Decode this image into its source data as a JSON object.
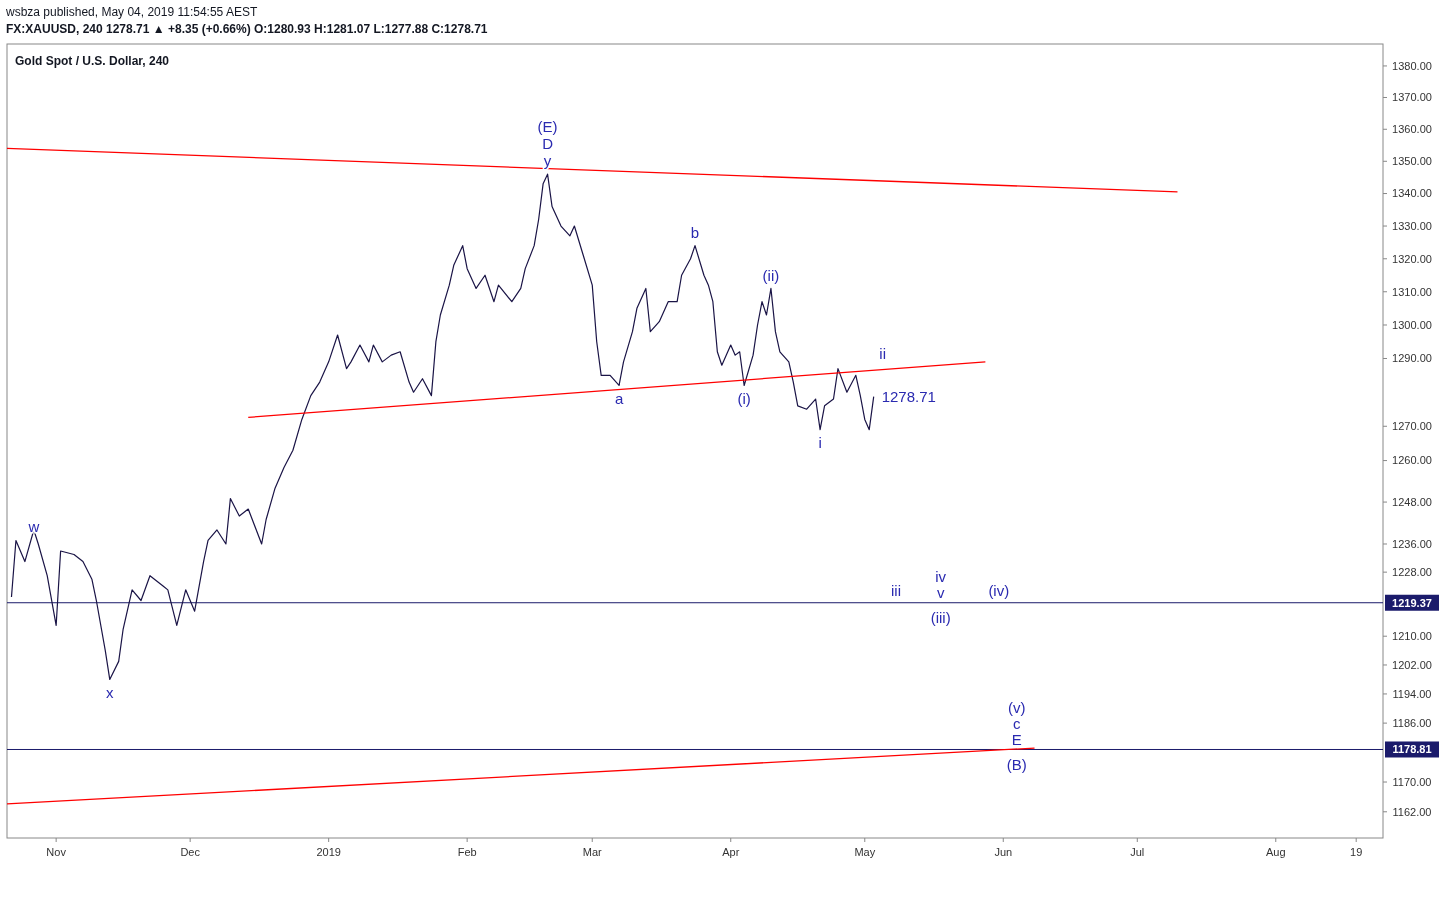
{
  "chart_data": {
    "type": "line",
    "title": "Gold Spot / U.S. Dollar, 240",
    "subtitle": "FX:XAUUSD, 240  1278.71 ▲ +8.35 (+0.66%)  O:1280.93  H:1281.07  L:1277.88  C:1278.71",
    "annotations": [
      "wsbza published, May 04, 2019 11:54:55 AEST",
      {
        "text": "y",
        "x": "2019-02-19",
        "y": 1346
      },
      {
        "text": "D",
        "x": "2019-02-19",
        "y": 1346
      },
      {
        "text": "(E)",
        "x": "2019-02-19",
        "y": 1346
      },
      {
        "text": "b",
        "x": "2019-03-24",
        "y": 1324
      },
      {
        "text": "(ii)",
        "x": "2019-04-10",
        "y": 1311
      },
      {
        "text": "ii",
        "x": "2019-05-05",
        "y": 1286.7
      },
      {
        "text": "a",
        "x": "2019-03-07",
        "y": 1282
      },
      {
        "text": "(i)",
        "x": "2019-04-04",
        "y": 1282
      },
      {
        "text": "i",
        "x": "2019-04-21",
        "y": 1269
      },
      {
        "text": "iii",
        "x": "2019-05-08",
        "y": 1219.37
      },
      {
        "text": "(iv)",
        "x": "2019-05-31",
        "y": 1219.37
      },
      {
        "text": "(iii)",
        "x": "2019-05-18",
        "y": 1219.37
      },
      {
        "text": "v",
        "x": "2019-05-18",
        "y": 1219.37
      },
      {
        "text": "iv",
        "x": "2019-05-18",
        "y": 1219.37
      },
      {
        "text": "(B)",
        "x": "2019-06-04",
        "y": 1178.81
      },
      {
        "text": "E",
        "x": "2019-06-04",
        "y": 1178.81
      },
      {
        "text": "c",
        "x": "2019-06-04",
        "y": 1178.81
      },
      {
        "text": "(v)",
        "x": "2019-06-04",
        "y": 1178.81
      },
      {
        "text": "w",
        "x": "2018-10-27",
        "y": 1241
      },
      {
        "text": "x",
        "x": "2018-11-13",
        "y": 1198
      },
      {
        "text": "1278.71",
        "x": "2019-05-03",
        "y": 1278.71
      }
    ],
    "log": "y",
    "grid": false,
    "xlim": [
      "2018-10-21",
      "2019-08-25"
    ],
    "xticks": [
      {
        "value": "2018-11-01",
        "label": "Nov"
      },
      {
        "value": "2018-12-01",
        "label": "Dec"
      },
      {
        "value": "2019-01-01",
        "label": "2019"
      },
      {
        "value": "2019-02-01",
        "label": "Feb"
      },
      {
        "value": "2019-03-01",
        "label": "Mar"
      },
      {
        "value": "2019-04-01",
        "label": "Apr"
      },
      {
        "value": "2019-05-01",
        "label": "May"
      },
      {
        "value": "2019-06-01",
        "label": "Jun"
      },
      {
        "value": "2019-07-01",
        "label": "Jul"
      },
      {
        "value": "2019-08-01",
        "label": "Aug"
      },
      {
        "value": "2019-08-19",
        "label": "19"
      }
    ],
    "ylim": [
      1155,
      1387
    ],
    "yticks": [
      {
        "value": 1380,
        "label": "1380.00"
      },
      {
        "value": 1370,
        "label": "1370.00"
      },
      {
        "value": 1360,
        "label": "1360.00"
      },
      {
        "value": 1350,
        "label": "1350.00"
      },
      {
        "value": 1340,
        "label": "1340.00"
      },
      {
        "value": 1330,
        "label": "1330.00"
      },
      {
        "value": 1320,
        "label": "1320.00"
      },
      {
        "value": 1310,
        "label": "1310.00"
      },
      {
        "value": 1300,
        "label": "1300.00"
      },
      {
        "value": 1290,
        "label": "1290.00"
      },
      {
        "value": 1270,
        "label": "1270.00"
      },
      {
        "value": 1260,
        "label": "1260.00"
      },
      {
        "value": 1248,
        "label": "1248.00"
      },
      {
        "value": 1236,
        "label": "1236.00"
      },
      {
        "value": 1228,
        "label": "1228.00"
      },
      {
        "value": 1210,
        "label": "1210.00"
      },
      {
        "value": 1202,
        "label": "1202.00"
      },
      {
        "value": 1194,
        "label": "1194.00"
      },
      {
        "value": 1186,
        "label": "1186.00"
      },
      {
        "value": 1170,
        "label": "1170.00"
      },
      {
        "value": 1162,
        "label": "1162.00"
      }
    ],
    "ref_lines": [
      {
        "axis": "y",
        "value": 1219.37,
        "label": "1219.37",
        "color": "#1b1b6b"
      },
      {
        "axis": "y",
        "value": 1178.81,
        "label": "1178.81",
        "color": "#1b1b6b"
      }
    ],
    "series": [
      {
        "color": "#1a1446",
        "x": [
          "2018-10-22",
          "2018-10-23",
          "2018-10-25",
          "2018-10-27",
          "2018-10-28",
          "2018-10-30",
          "2018-11-01",
          "2018-11-02",
          "2018-11-05",
          "2018-11-07",
          "2018-11-09",
          "2018-11-10",
          "2018-11-12",
          "2018-11-13",
          "2018-11-15",
          "2018-11-16",
          "2018-11-18",
          "2018-11-20",
          "2018-11-22",
          "2018-11-25",
          "2018-11-26",
          "2018-11-28",
          "2018-11-30",
          "2018-12-02",
          "2018-12-04",
          "2018-12-05",
          "2018-12-07",
          "2018-12-09",
          "2018-12-10",
          "2018-12-12",
          "2018-12-14",
          "2018-12-17",
          "2018-12-18",
          "2018-12-20",
          "2018-12-22",
          "2018-12-24",
          "2018-12-26",
          "2018-12-28",
          "2018-12-30",
          "2019-01-01",
          "2019-01-03",
          "2019-01-05",
          "2019-01-06",
          "2019-01-08",
          "2019-01-10",
          "2019-01-11",
          "2019-01-13",
          "2019-01-15",
          "2019-01-17",
          "2019-01-19",
          "2019-01-20",
          "2019-01-22",
          "2019-01-24",
          "2019-01-25",
          "2019-01-26",
          "2019-01-28",
          "2019-01-29",
          "2019-01-31",
          "2019-02-01",
          "2019-02-03",
          "2019-02-05",
          "2019-02-07",
          "2019-02-08",
          "2019-02-11",
          "2019-02-13",
          "2019-02-14",
          "2019-02-16",
          "2019-02-17",
          "2019-02-18",
          "2019-02-19",
          "2019-02-20",
          "2019-02-22",
          "2019-02-24",
          "2019-02-25",
          "2019-02-27",
          "2019-03-01",
          "2019-03-02",
          "2019-03-03",
          "2019-03-05",
          "2019-03-07",
          "2019-03-08",
          "2019-03-10",
          "2019-03-11",
          "2019-03-13",
          "2019-03-14",
          "2019-03-16",
          "2019-03-18",
          "2019-03-20",
          "2019-03-21",
          "2019-03-23",
          "2019-03-24",
          "2019-03-26",
          "2019-03-27",
          "2019-03-28",
          "2019-03-29",
          "2019-03-30",
          "2019-04-01",
          "2019-04-02",
          "2019-04-03",
          "2019-04-04",
          "2019-04-06",
          "2019-04-07",
          "2019-04-08",
          "2019-04-09",
          "2019-04-10",
          "2019-04-11",
          "2019-04-12",
          "2019-04-14",
          "2019-04-15",
          "2019-04-16",
          "2019-04-18",
          "2019-04-20",
          "2019-04-21",
          "2019-04-22",
          "2019-04-24",
          "2019-04-25",
          "2019-04-27",
          "2019-04-29",
          "2019-04-30",
          "2019-05-01",
          "2019-05-02",
          "2019-05-03"
        ],
        "values": [
          1221,
          1237,
          1231,
          1240,
          1236,
          1227,
          1213,
          1234,
          1233,
          1231,
          1226,
          1220,
          1206,
          1198,
          1203,
          1212,
          1223,
          1220,
          1227,
          1224,
          1223,
          1213,
          1223,
          1217,
          1231,
          1237,
          1240,
          1236,
          1249,
          1244,
          1246,
          1236,
          1243,
          1252,
          1258,
          1263,
          1272,
          1279,
          1283,
          1289,
          1297,
          1287,
          1289,
          1294,
          1289,
          1294,
          1289,
          1291,
          1292,
          1283,
          1280,
          1284,
          1279,
          1295,
          1303,
          1312,
          1318,
          1324,
          1317,
          1311,
          1315,
          1307,
          1312,
          1307,
          1311,
          1317,
          1324,
          1332,
          1343,
          1346,
          1336,
          1330,
          1327,
          1330,
          1321,
          1312,
          1295,
          1285,
          1285,
          1282,
          1289,
          1298,
          1305,
          1311,
          1298,
          1301,
          1307,
          1307,
          1315,
          1320,
          1324,
          1315,
          1312,
          1307,
          1292,
          1288,
          1294,
          1291,
          1292,
          1282,
          1291,
          1300,
          1307,
          1303,
          1311,
          1298,
          1292,
          1289,
          1283,
          1276,
          1275,
          1278,
          1269,
          1276,
          1278,
          1287,
          1280,
          1285,
          1279,
          1272,
          1269,
          1278.71
        ]
      },
      {
        "type": "line",
        "color": "#ff0000",
        "x": [
          "2018-10-21",
          "2019-07-10"
        ],
        "values": [
          1354,
          1340.5
        ]
      },
      {
        "type": "line",
        "color": "#ff0000",
        "x": [
          "2018-12-14",
          "2019-05-28"
        ],
        "values": [
          1272.6,
          1289
        ]
      },
      {
        "type": "line",
        "color": "#ff0000",
        "x": [
          "2018-10-21",
          "2019-06-08"
        ],
        "values": [
          1164.1,
          1179.2
        ]
      }
    ]
  }
}
